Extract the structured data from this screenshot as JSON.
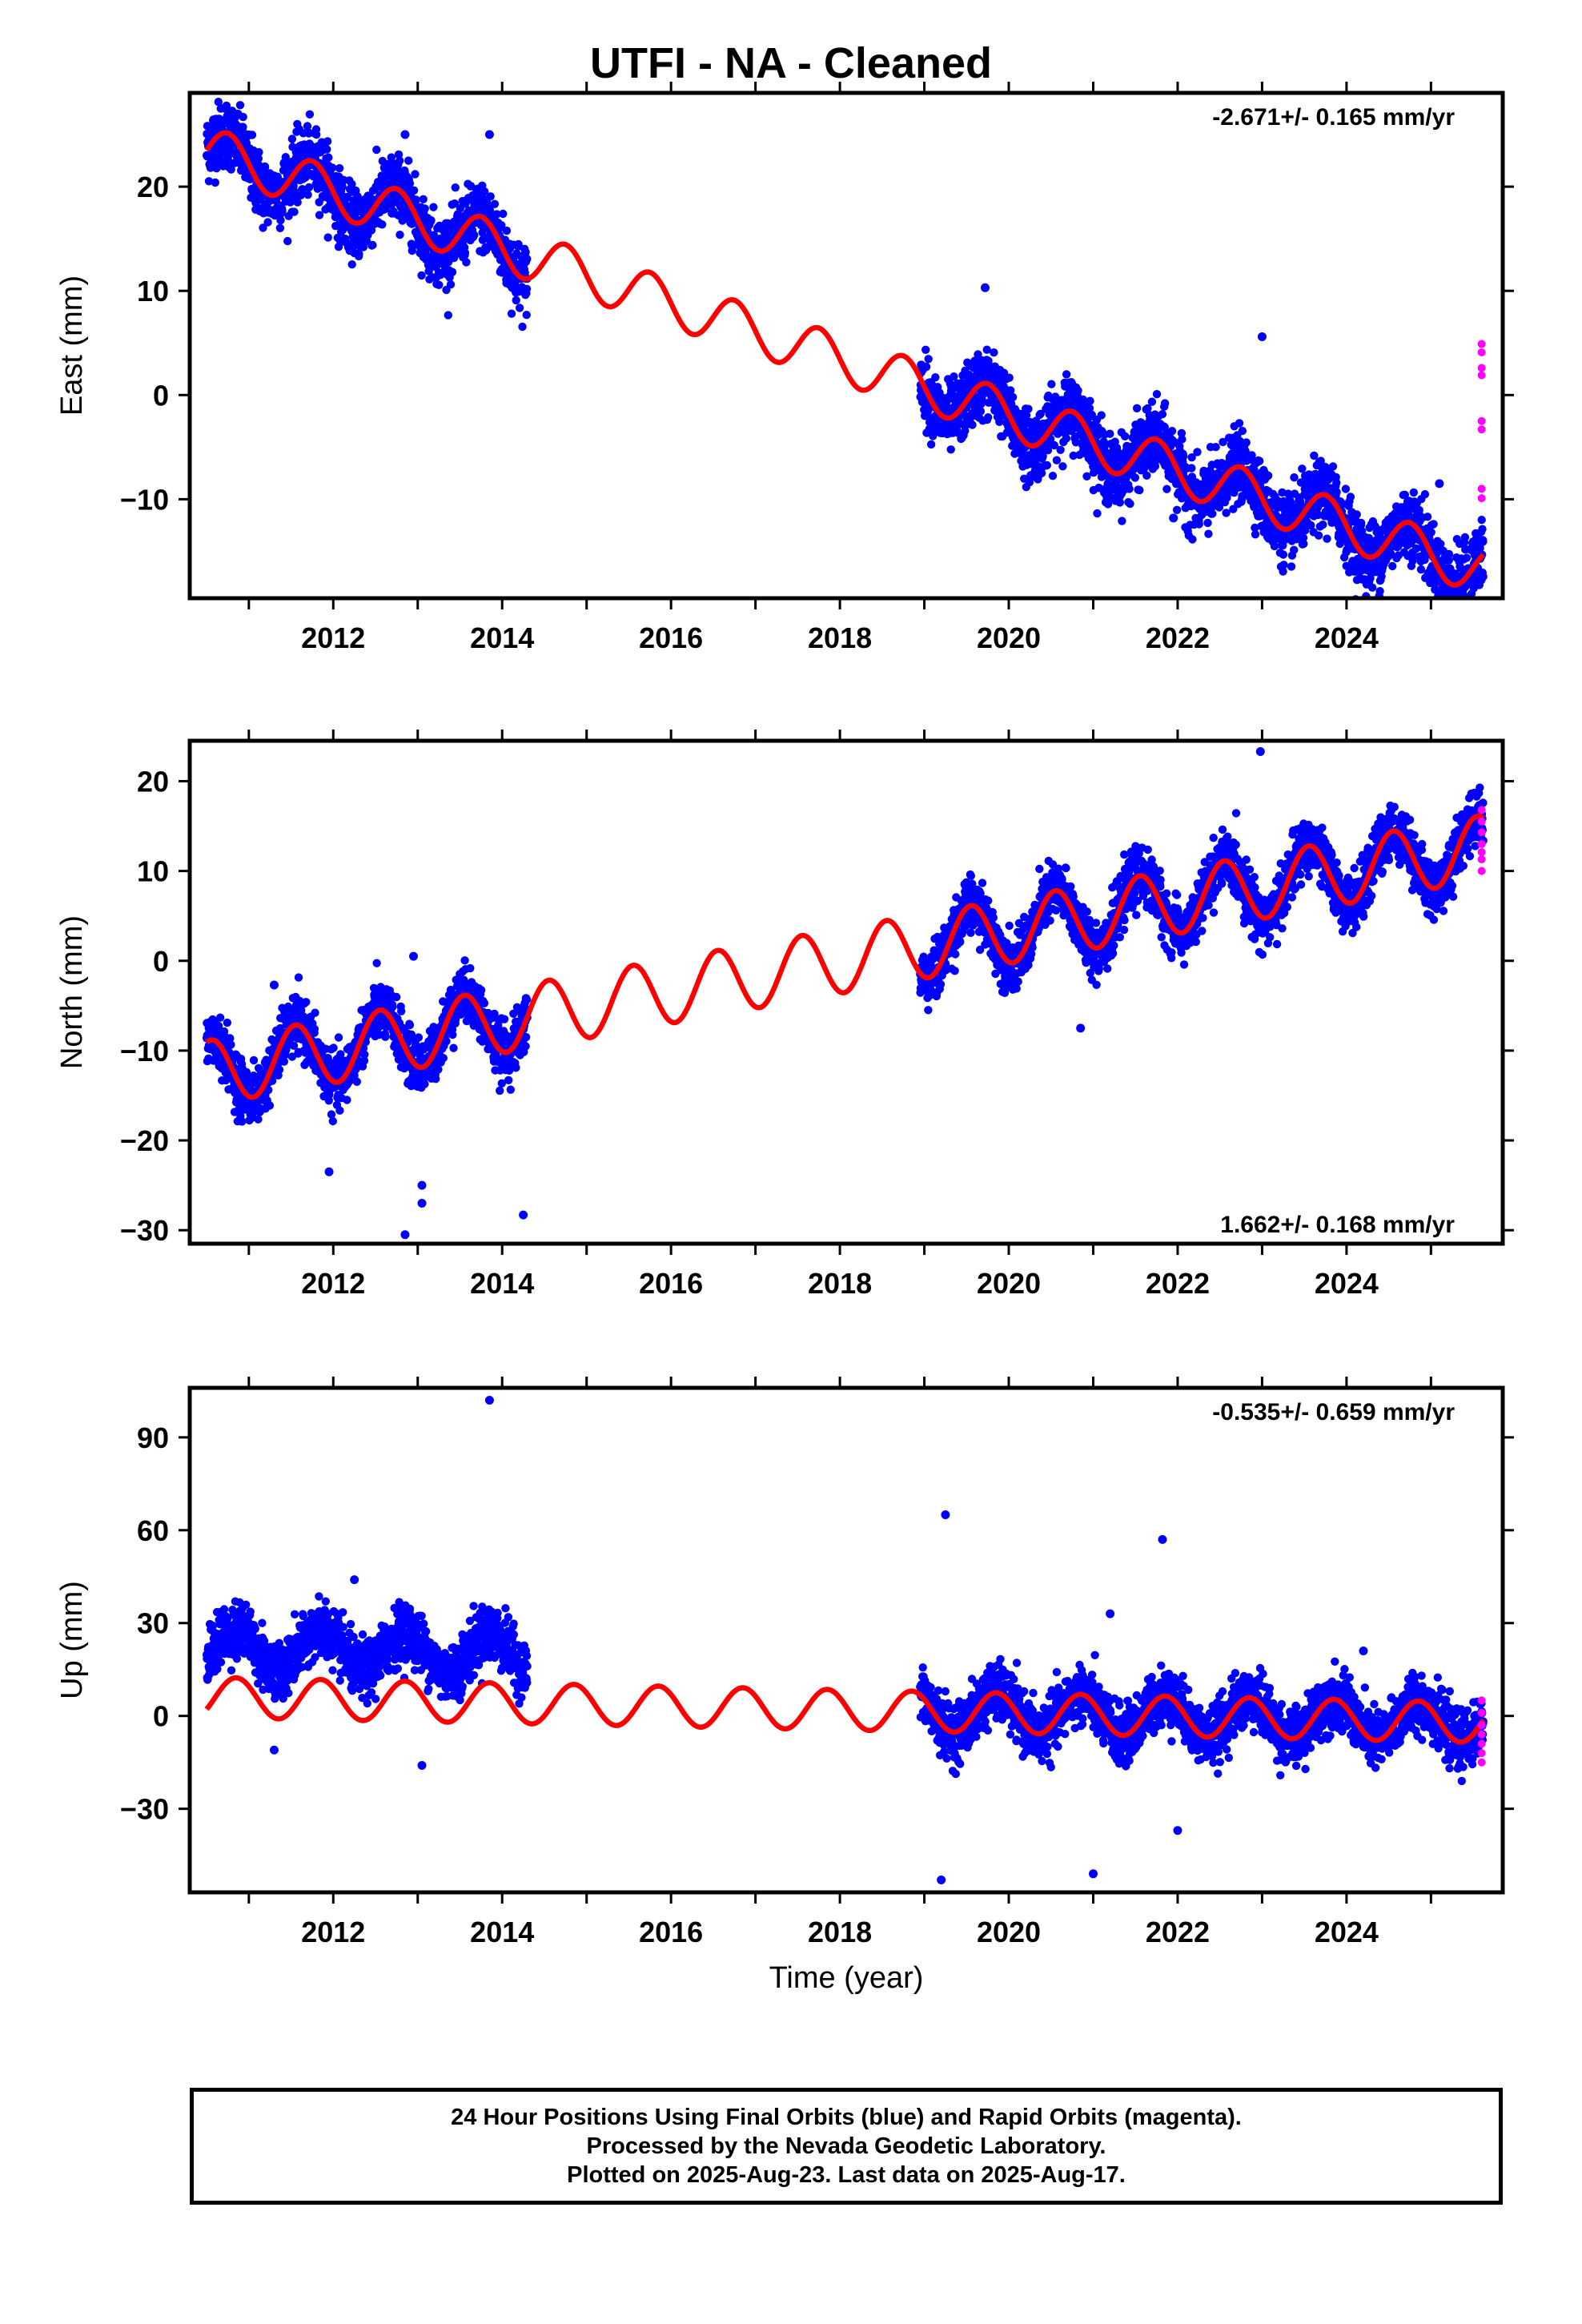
{
  "title": "UTFI  - NA - Cleaned",
  "xlabel": "Time (year)",
  "footer": {
    "line1": "24 Hour Positions Using Final Orbits (blue) and Rapid Orbits (magenta).",
    "line2": "Processed by the Nevada Geodetic Laboratory.",
    "line3": "Plotted on 2025-Aug-23. Last data on 2025-Aug-17."
  },
  "colors": {
    "final_orbits": "#0000ff",
    "rapid_orbits": "#ff00ff",
    "model_fit": "#ff0000",
    "frame": "#000000"
  },
  "chart_data": [
    {
      "type": "scatter",
      "name": "east",
      "ylabel": "East (mm)",
      "rate_text": "-2.671+/- 0.165 mm/yr",
      "rate_position": "top-right",
      "xlim": [
        2010.3,
        2025.85
      ],
      "ylim": [
        -19.5,
        29
      ],
      "xticks": [
        2012,
        2014,
        2016,
        2018,
        2020,
        2022,
        2024
      ],
      "yticks": [
        -10,
        0,
        10,
        20
      ],
      "grid": false,
      "model": {
        "type": "line",
        "intercept_2010_5": 23.5,
        "rate": -2.671,
        "annual_amplitude": 2.3,
        "annual_phase_peak": 0.75
      },
      "final_segments": [
        [
          2010.5,
          2014.3
        ],
        [
          2018.95,
          2025.62
        ]
      ],
      "final_scatter_sd": 1.6,
      "outliers": [
        [
          2012.85,
          25
        ],
        [
          2013.85,
          25
        ],
        [
          2019.72,
          10.3
        ],
        [
          2023.0,
          5.6
        ],
        [
          2021.95,
          -11.8
        ],
        [
          2025.1,
          -8.5
        ]
      ],
      "rapid_points": [
        [
          2025.6,
          4.9
        ],
        [
          2025.6,
          4.1
        ],
        [
          2025.6,
          2.6
        ],
        [
          2025.6,
          1.9
        ],
        [
          2025.6,
          -2.5
        ],
        [
          2025.6,
          -3.3
        ],
        [
          2025.6,
          -9.0
        ],
        [
          2025.6,
          -9.9
        ]
      ]
    },
    {
      "type": "scatter",
      "name": "north",
      "ylabel": "North (mm)",
      "rate_text": "1.662+/- 0.168 mm/yr",
      "rate_position": "bottom-right",
      "xlim": [
        2010.3,
        2025.85
      ],
      "ylim": [
        -31.5,
        24.5
      ],
      "xticks": [
        2012,
        2014,
        2016,
        2018,
        2020,
        2022,
        2024
      ],
      "yticks": [
        -30,
        -20,
        -10,
        0,
        10,
        20
      ],
      "grid": false,
      "model": {
        "type": "line",
        "intercept_2010_5": -12.5,
        "rate": 1.662,
        "annual_amplitude": 3.6,
        "annual_phase_peak": 0.55
      },
      "final_segments": [
        [
          2010.5,
          2014.3
        ],
        [
          2018.95,
          2025.62
        ]
      ],
      "final_scatter_sd": 1.5,
      "outliers": [
        [
          2012.85,
          -30.5
        ],
        [
          2013.05,
          -27.0
        ],
        [
          2013.05,
          -25.0
        ],
        [
          2014.25,
          -28.3
        ],
        [
          2011.95,
          -23.5
        ],
        [
          2022.98,
          23.3
        ],
        [
          2012.95,
          0.5
        ],
        [
          2011.3,
          -2.7
        ],
        [
          2020.85,
          -7.5
        ]
      ],
      "rapid_points": [
        [
          2025.6,
          16.8
        ],
        [
          2025.6,
          15.5
        ],
        [
          2025.6,
          14.3
        ],
        [
          2025.6,
          13.0
        ],
        [
          2025.6,
          12.1
        ],
        [
          2025.6,
          11.3
        ],
        [
          2025.6,
          10.0
        ]
      ]
    },
    {
      "type": "scatter",
      "name": "up",
      "ylabel": "Up (mm)",
      "rate_text": "-0.535+/- 0.659 mm/yr",
      "rate_position": "top-right",
      "xlim": [
        2010.3,
        2025.85
      ],
      "ylim": [
        -57,
        106
      ],
      "xticks": [
        2012,
        2014,
        2016,
        2018,
        2020,
        2022,
        2024
      ],
      "yticks": [
        -30,
        0,
        30,
        60,
        90
      ],
      "grid": false,
      "model": {
        "type": "line",
        "intercept_2010_5": 6.0,
        "rate": -0.535,
        "annual_amplitude": 6.5,
        "annual_phase_peak": 0.85
      },
      "final_segments": [
        [
          2010.5,
          2014.3
        ],
        [
          2018.95,
          2025.62
        ]
      ],
      "final_scatter_sd": 4.5,
      "final_offset_first_segment": 16,
      "outliers": [
        [
          2013.85,
          102
        ],
        [
          2019.25,
          65
        ],
        [
          2021.82,
          57
        ],
        [
          2021.2,
          33
        ],
        [
          2024.2,
          21
        ],
        [
          2012.25,
          44
        ],
        [
          2011.3,
          -11
        ],
        [
          2013.05,
          -16
        ],
        [
          2019.2,
          -53
        ],
        [
          2021.0,
          -51
        ],
        [
          2022.0,
          -37
        ]
      ],
      "rapid_points": [
        [
          2025.6,
          5
        ],
        [
          2025.6,
          1
        ],
        [
          2025.6,
          -3
        ],
        [
          2025.6,
          -6
        ],
        [
          2025.6,
          -9
        ],
        [
          2025.6,
          -12
        ],
        [
          2025.6,
          -15
        ]
      ]
    }
  ]
}
